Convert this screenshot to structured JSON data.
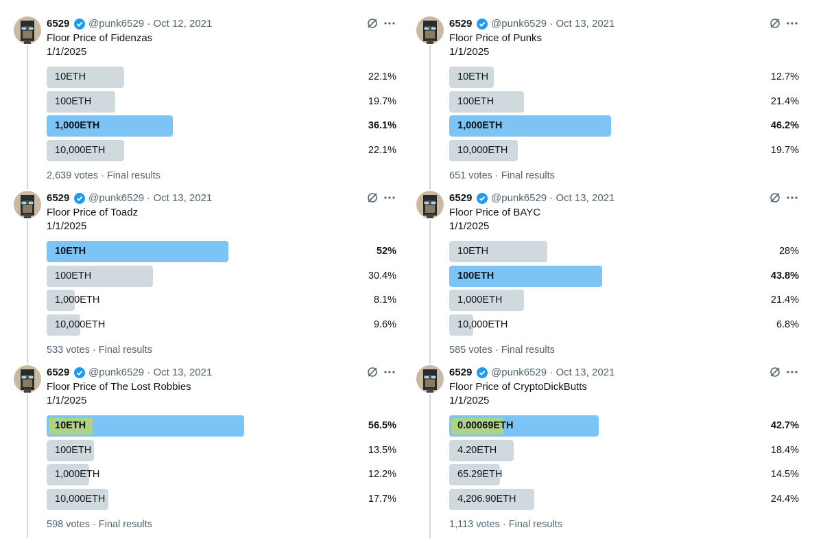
{
  "polls": [
    {
      "name": "6529",
      "meta": "@punk6529 · Oct 12, 2021",
      "text": [
        "Floor Price of Fidenzas",
        "1/1/2025"
      ],
      "options": [
        {
          "label": "10ETH",
          "value": 22.1,
          "value_label": "22.1%"
        },
        {
          "label": "100ETH",
          "value": 19.7,
          "value_label": "19.7%"
        },
        {
          "label": "1,000ETH",
          "value": 36.1,
          "value_label": "36.1%"
        },
        {
          "label": "10,000ETH",
          "value": 22.1,
          "value_label": "22.1%"
        }
      ],
      "footer": "2,639 votes · Final results"
    },
    {
      "name": "6529",
      "meta": "@punk6529 · Oct 13, 2021",
      "text": [
        "Floor Price of Punks",
        "1/1/2025"
      ],
      "options": [
        {
          "label": "10ETH",
          "value": 12.7,
          "value_label": "12.7%"
        },
        {
          "label": "100ETH",
          "value": 21.4,
          "value_label": "21.4%"
        },
        {
          "label": "1,000ETH",
          "value": 46.2,
          "value_label": "46.2%"
        },
        {
          "label": "10,000ETH",
          "value": 19.7,
          "value_label": "19.7%"
        }
      ],
      "footer": "651 votes · Final results"
    },
    {
      "name": "6529",
      "meta": "@punk6529 · Oct 13, 2021",
      "text": [
        "Floor Price of Toadz",
        "1/1/2025"
      ],
      "options": [
        {
          "label": "10ETH",
          "value": 52,
          "value_label": "52%"
        },
        {
          "label": "100ETH",
          "value": 30.4,
          "value_label": "30.4%"
        },
        {
          "label": "1,000ETH",
          "value": 8.1,
          "value_label": "8.1%"
        },
        {
          "label": "10,000ETH",
          "value": 9.6,
          "value_label": "9.6%"
        }
      ],
      "footer": "533 votes · Final results"
    },
    {
      "name": "6529",
      "meta": "@punk6529 · Oct 13, 2021",
      "text": [
        "Floor Price of BAYC",
        "1/1/2025"
      ],
      "options": [
        {
          "label": "10ETH",
          "value": 28,
          "value_label": "28%"
        },
        {
          "label": "100ETH",
          "value": 43.8,
          "value_label": "43.8%"
        },
        {
          "label": "1,000ETH",
          "value": 21.4,
          "value_label": "21.4%"
        },
        {
          "label": "10,000ETH",
          "value": 6.8,
          "value_label": "6.8%"
        }
      ],
      "footer": "585 votes · Final results"
    },
    {
      "name": "6529",
      "meta": "@punk6529 · Oct 13, 2021",
      "text": [
        "Floor Price of The Lost Robbies",
        "1/1/2025"
      ],
      "options": [
        {
          "label": "10ETH",
          "value": 56.5,
          "value_label": "56.5%"
        },
        {
          "label": "100ETH",
          "value": 13.5,
          "value_label": "13.5%"
        },
        {
          "label": "1,000ETH",
          "value": 12.2,
          "value_label": "12.2%"
        },
        {
          "label": "10,000ETH",
          "value": 17.7,
          "value_label": "17.7%"
        }
      ],
      "footer": "598 votes · Final results"
    },
    {
      "name": "6529",
      "meta": "@punk6529 · Oct 13, 2021",
      "text": [
        "Floor Price of CryptoDickButts",
        "1/1/2025"
      ],
      "options": [
        {
          "label": "0.00069ETH",
          "value": 42.7,
          "value_label": "42.7%"
        },
        {
          "label": "4.20ETH",
          "value": 18.4,
          "value_label": "18.4%"
        },
        {
          "label": "65.29ETH",
          "value": 14.5,
          "value_label": "14.5%"
        },
        {
          "label": "4,206.90ETH",
          "value": 24.4,
          "value_label": "24.4%"
        }
      ],
      "footer": "1,113 votes · Final results"
    }
  ]
}
